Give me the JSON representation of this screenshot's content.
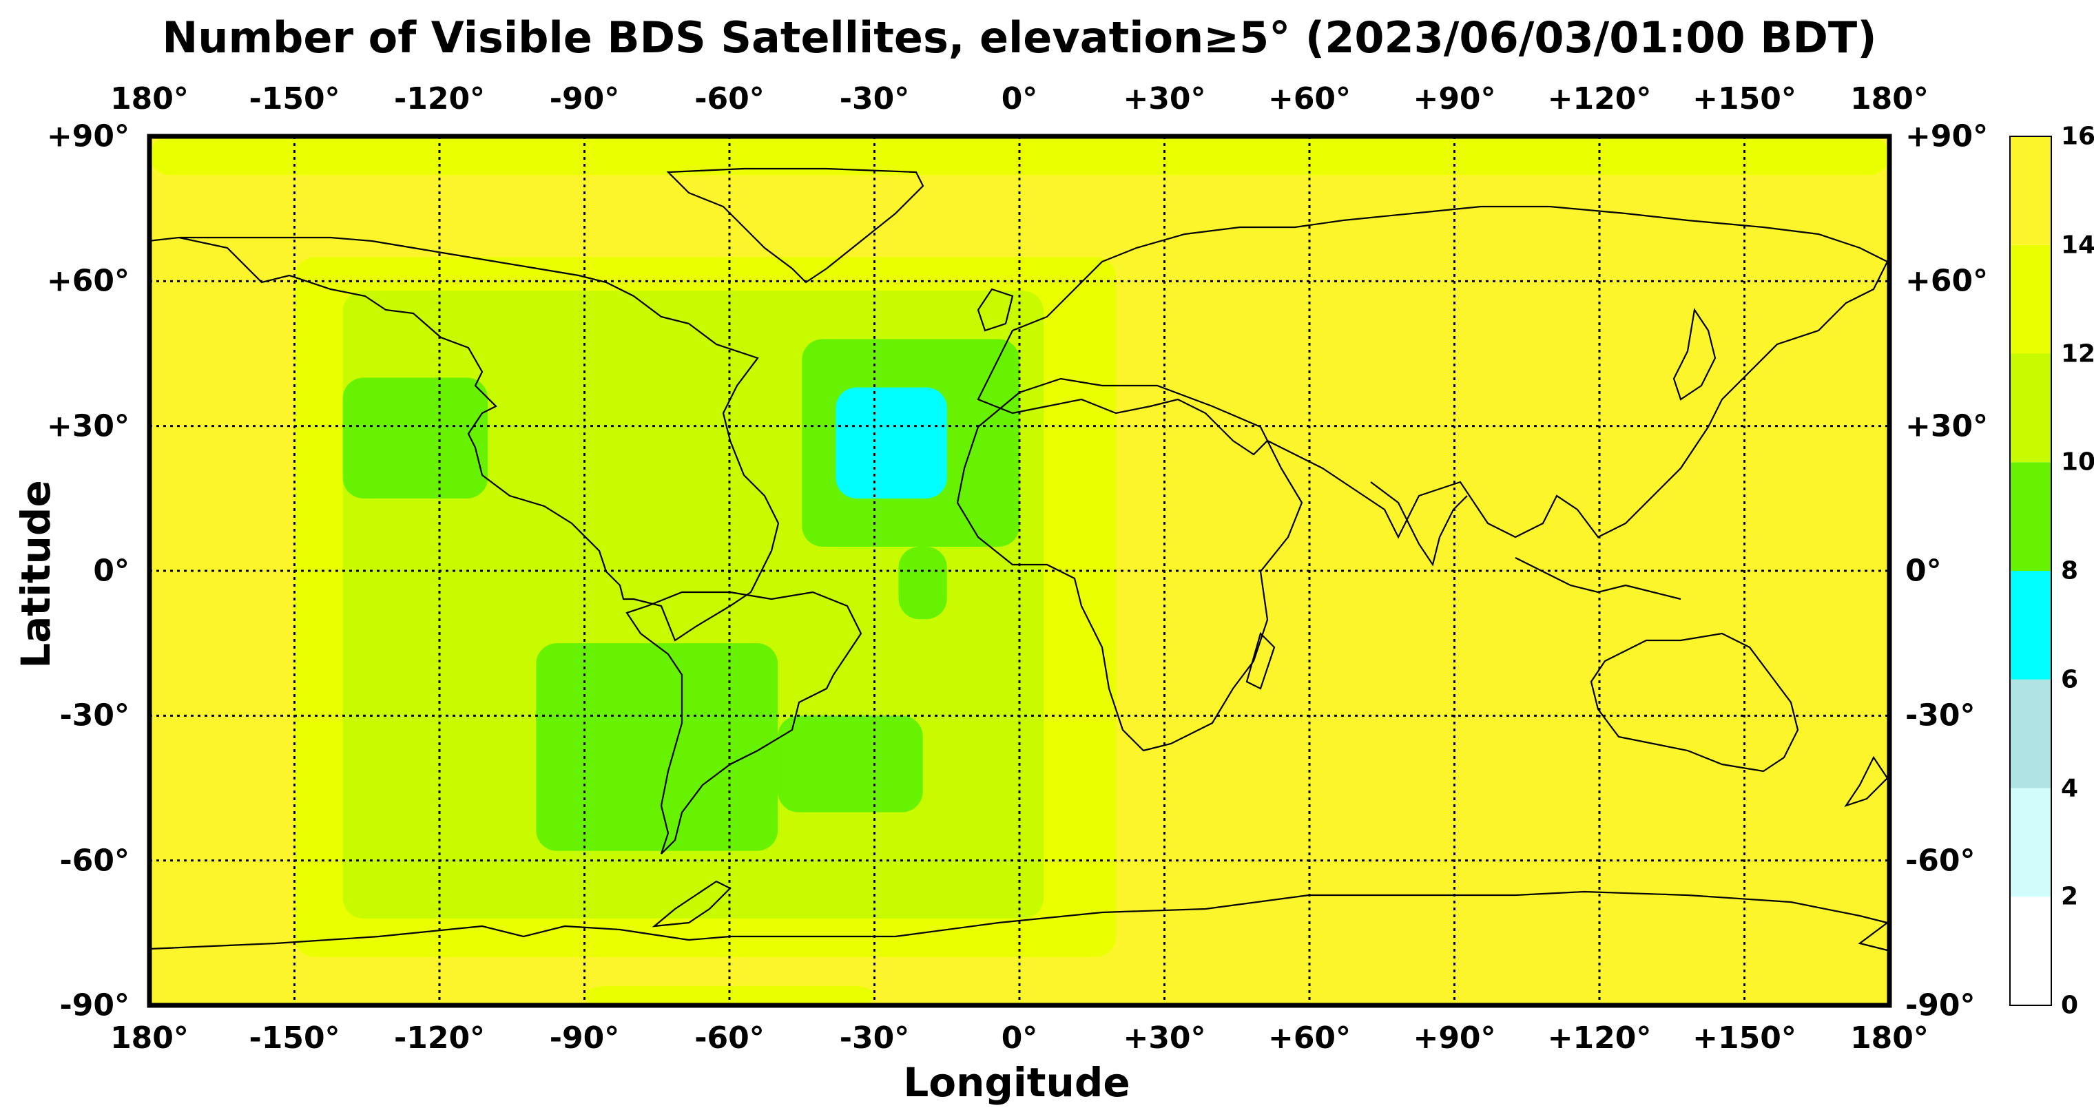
{
  "title": "Number of Visible BDS Satellites, elevation≥5° (2023/06/03/01:00 BDT)",
  "xlabel": "Longitude",
  "ylabel": "Latitude",
  "lon_ticks": [
    "180°",
    "-150°",
    "-120°",
    "-90°",
    "-60°",
    "-30°",
    "0°",
    "+30°",
    "+60°",
    "+90°",
    "+120°",
    "+150°",
    "180°"
  ],
  "lat_ticks": [
    "+90°",
    "+60°",
    "+30°",
    "0°",
    "-30°",
    "-60°",
    "-90°"
  ],
  "colorbar": {
    "ticks": [
      "16",
      "14",
      "12",
      "10",
      "8",
      "6",
      "4",
      "2",
      "0"
    ],
    "levels": [
      {
        "from": 0,
        "to": 2,
        "color": "#ffffff"
      },
      {
        "from": 2,
        "to": 4,
        "color": "#d2fbfb"
      },
      {
        "from": 4,
        "to": 6,
        "color": "#b0e4e4"
      },
      {
        "from": 6,
        "to": 8,
        "color": "#00ffff"
      },
      {
        "from": 8,
        "to": 10,
        "color": "#66f200"
      },
      {
        "from": 10,
        "to": 12,
        "color": "#c8fa00"
      },
      {
        "from": 12,
        "to": 14,
        "color": "#eaff00"
      },
      {
        "from": 14,
        "to": 16,
        "color": "#fdf52b"
      }
    ]
  },
  "map": {
    "background_value": 15,
    "regions": [
      {
        "value": 13,
        "label": "polar-north",
        "lon": [
          -180,
          180
        ],
        "lat": [
          82,
          90
        ]
      },
      {
        "value": 13,
        "label": "antarctic-south",
        "lon": [
          -90,
          -30
        ],
        "lat": [
          -90,
          -86
        ]
      },
      {
        "value": 13,
        "label": "atlantic-pacific-wide",
        "lon": [
          -150,
          20
        ],
        "lat": [
          -80,
          65
        ]
      },
      {
        "value": 11,
        "label": "americas-band",
        "lon": [
          -140,
          5
        ],
        "lat": [
          -72,
          58
        ]
      },
      {
        "value": 9,
        "label": "north-east-pacific",
        "lon": [
          -140,
          -110
        ],
        "lat": [
          15,
          40
        ]
      },
      {
        "value": 9,
        "label": "south-america",
        "lon": [
          -100,
          -50
        ],
        "lat": [
          -58,
          -15
        ]
      },
      {
        "value": 9,
        "label": "south-atlantic",
        "lon": [
          -50,
          -20
        ],
        "lat": [
          -50,
          -30
        ]
      },
      {
        "value": 9,
        "label": "north-atlantic",
        "lon": [
          -45,
          0
        ],
        "lat": [
          5,
          48
        ]
      },
      {
        "value": 9,
        "label": "equatorial-atlantic",
        "lon": [
          -25,
          -15
        ],
        "lat": [
          -10,
          5
        ]
      },
      {
        "value": 7,
        "label": "atlantic-cyan",
        "lon": [
          -38,
          -15
        ],
        "lat": [
          15,
          38
        ]
      }
    ]
  }
}
